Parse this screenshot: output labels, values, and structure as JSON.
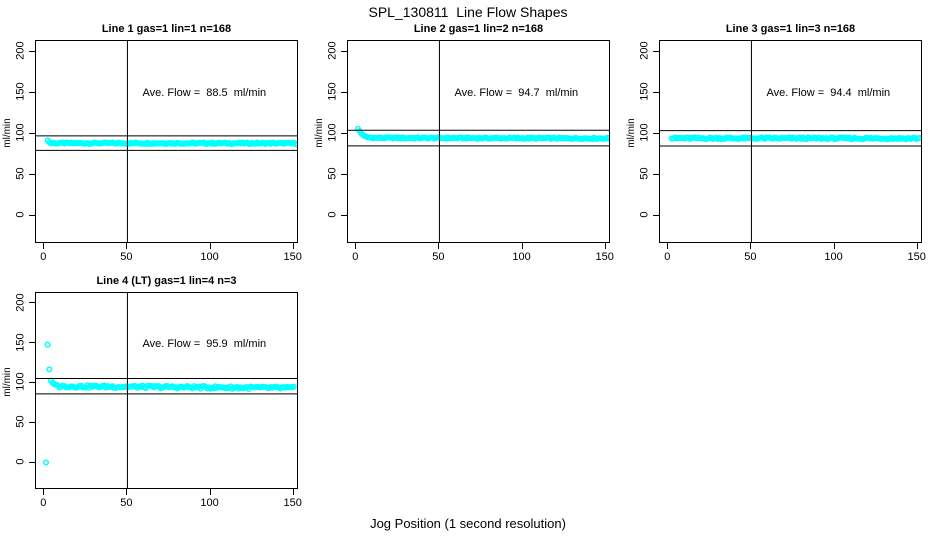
{
  "page": {
    "title": "SPL_130811  Line Flow Shapes",
    "xlabel": "Jog Position (1 second resolution)",
    "background": "#ffffff"
  },
  "colors": {
    "points": "#00ffff",
    "lines": "#000000",
    "text": "#000000"
  },
  "axes": {
    "y_label": "ml/min",
    "x_ticks": [
      "0",
      "50",
      "100",
      "150"
    ],
    "x_tick_values": [
      0,
      50,
      100,
      150
    ],
    "y_ticks": [
      "0",
      "50",
      "100",
      "150",
      "200"
    ],
    "y_tick_values": [
      0,
      50,
      100,
      150,
      200
    ],
    "x_range": [
      -5,
      152
    ],
    "y_range": [
      -32,
      213
    ],
    "vline_x": 50,
    "grid": false
  },
  "chart_data": [
    {
      "type": "scatter",
      "title": "Line 1 gas=1 lin=1 n=168",
      "line": 1,
      "gas": 1,
      "lin": 1,
      "n": 168,
      "annotation": "Ave. Flow =  88.5  ml/min",
      "ave_flow_ml_min": 88.5,
      "hlines": [
        97.4,
        79.7
      ],
      "points": {
        "explicit": [
          [
            2,
            91.8
          ],
          [
            3,
            89.6
          ]
        ],
        "band": {
          "from": 4,
          "to": 152,
          "start": 88.5,
          "end": 88.3,
          "jitter": 0.9
        }
      }
    },
    {
      "type": "scatter",
      "title": "Line 2 gas=1 lin=2 n=168",
      "line": 2,
      "gas": 1,
      "lin": 2,
      "n": 168,
      "annotation": "Ave. Flow =  94.7  ml/min",
      "ave_flow_ml_min": 94.7,
      "hlines": [
        104.2,
        85.2
      ],
      "points": {
        "explicit": [
          [
            1,
            106
          ],
          [
            2,
            103.2
          ],
          [
            3,
            100.3
          ],
          [
            4,
            98.4
          ],
          [
            5,
            97.2
          ],
          [
            6,
            96.4
          ],
          [
            7,
            95.8
          ],
          [
            8,
            95.4
          ],
          [
            9,
            95.1
          ]
        ],
        "band": {
          "from": 10,
          "to": 152,
          "start": 94.9,
          "end": 94.3,
          "jitter": 0.8
        }
      }
    },
    {
      "type": "scatter",
      "title": "Line 3 gas=1 lin=3 n=168",
      "line": 3,
      "gas": 1,
      "lin": 3,
      "n": 168,
      "annotation": "Ave. Flow =  94.4  ml/min",
      "ave_flow_ml_min": 94.4,
      "hlines": [
        103.8,
        85.0
      ],
      "points": {
        "explicit": [],
        "band": {
          "from": 2,
          "to": 151,
          "start": 94.5,
          "end": 94.3,
          "jitter": 1.1
        }
      }
    },
    {
      "type": "scatter",
      "title": "Line 4 (LT) gas=1 lin=4 n=3",
      "line": 4,
      "gas": 1,
      "lin": 4,
      "n": 3,
      "annotation": "Ave. Flow =  95.9  ml/min",
      "ave_flow_ml_min": 95.9,
      "hlines": [
        105.5,
        86.3
      ],
      "points": {
        "explicit": [
          [
            1,
            0
          ],
          [
            2,
            148
          ],
          [
            3,
            117
          ],
          [
            4,
            103
          ],
          [
            5,
            100.2
          ],
          [
            6,
            98.6
          ],
          [
            7,
            97.6
          ]
        ],
        "band": {
          "from": 8,
          "to": 150,
          "start": 95.8,
          "end": 93.6,
          "jitter": 1.7
        }
      }
    }
  ]
}
